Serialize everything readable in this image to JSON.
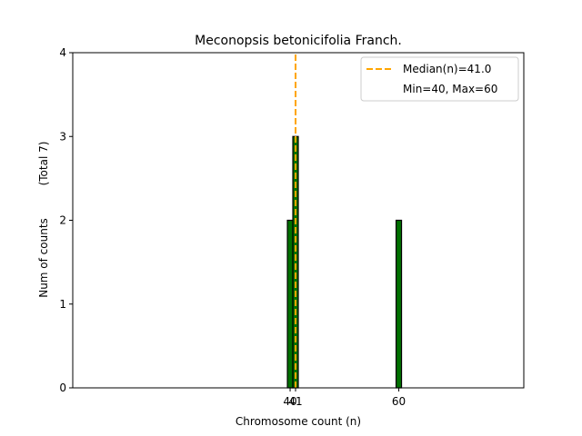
{
  "chart_data": {
    "type": "bar",
    "title": "Meconopsis betonicifolia Franch.",
    "xlabel": "Chromosome count (n)",
    "ylabel": "Num of counts",
    "ylabel_total": "(Total 7)",
    "xlim": [
      0,
      83
    ],
    "ylim": [
      0,
      4
    ],
    "x_ticks": [
      40,
      41,
      60
    ],
    "y_ticks": [
      0,
      1,
      2,
      3,
      4
    ],
    "bins": [
      {
        "x": 40,
        "count": 2
      },
      {
        "x": 41,
        "count": 3
      },
      {
        "x": 60,
        "count": 2
      }
    ],
    "bar_width": 1,
    "median": 41.0,
    "min": 40,
    "max": 60,
    "grid": false,
    "legend_position": "top-right",
    "legend": {
      "median_label": "Median(n)=41.0",
      "range_label": "Min=40, Max=60"
    },
    "colors": {
      "bar_fill": "#007000",
      "bar_edge": "#000000",
      "median_line": "#ffa500"
    }
  }
}
